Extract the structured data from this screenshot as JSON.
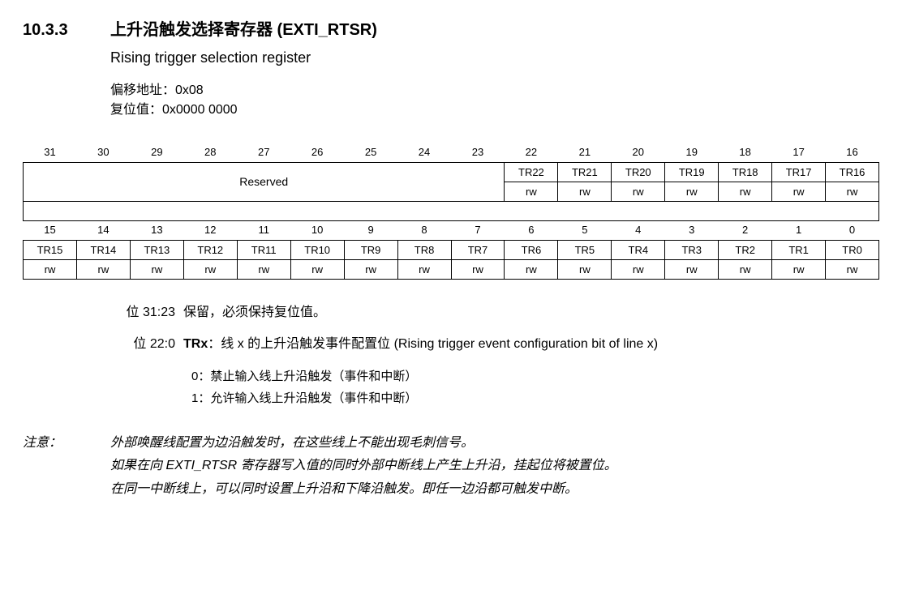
{
  "header": {
    "section_num": "10.3.3",
    "title_cn": "上升沿触发选择寄存器 (EXTI_RTSR)",
    "subtitle_en": "Rising trigger selection register",
    "offset_label": "偏移地址：0x08",
    "reset_label": "复位值：0x0000 0000"
  },
  "register": {
    "bits_high": [
      "31",
      "30",
      "29",
      "28",
      "27",
      "26",
      "25",
      "24",
      "23",
      "22",
      "21",
      "20",
      "19",
      "18",
      "17",
      "16"
    ],
    "bits_low": [
      "15",
      "14",
      "13",
      "12",
      "11",
      "10",
      "9",
      "8",
      "7",
      "6",
      "5",
      "4",
      "3",
      "2",
      "1",
      "0"
    ],
    "reserved_label": "Reserved",
    "row_high_names": [
      "TR22",
      "TR21",
      "TR20",
      "TR19",
      "TR18",
      "TR17",
      "TR16"
    ],
    "row_high_access": [
      "rw",
      "rw",
      "rw",
      "rw",
      "rw",
      "rw",
      "rw"
    ],
    "row_low_names": [
      "TR15",
      "TR14",
      "TR13",
      "TR12",
      "TR11",
      "TR10",
      "TR9",
      "TR8",
      "TR7",
      "TR6",
      "TR5",
      "TR4",
      "TR3",
      "TR2",
      "TR1",
      "TR0"
    ],
    "row_low_access": [
      "rw",
      "rw",
      "rw",
      "rw",
      "rw",
      "rw",
      "rw",
      "rw",
      "rw",
      "rw",
      "rw",
      "rw",
      "rw",
      "rw",
      "rw",
      "rw"
    ]
  },
  "fields": {
    "f0": {
      "bits": "位 31:23",
      "desc": "保留，必须保持复位值。"
    },
    "f1": {
      "bits": "位 22:0",
      "name": "TRx",
      "sep": "：",
      "desc": "线 x 的上升沿触发事件配置位 (Rising trigger event configuration bit of line x)",
      "val0": "0：禁止输入线上升沿触发（事件和中断）",
      "val1": "1：允许输入线上升沿触发（事件和中断）"
    }
  },
  "note": {
    "label": "注意：",
    "line1_a": "外部唤醒线配置为边沿触发时，在这些线上不能出现毛刺信号。",
    "line2_a": "如果在向 ",
    "line2_reg": "EXTI_RTSR",
    "line2_b": " 寄存器写入值的同时外部中断线上产生上升沿，挂起位将被置位。",
    "line3": "在同一中断线上，可以同时设置上升沿和下降沿触发。即任一边沿都可触发中断。"
  }
}
